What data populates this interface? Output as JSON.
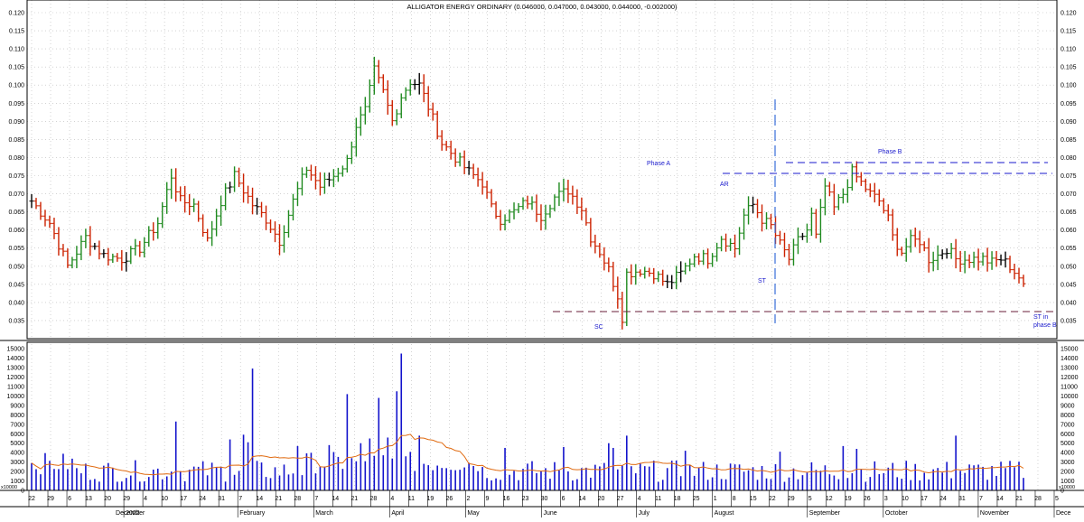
{
  "chart_data": {
    "type": "candlestick",
    "title": "ALLIGATOR ENERGY ORDINARY (0.046000, 0.047000, 0.043000, 0.044000, -0.002000)",
    "price_axis": {
      "ylim": [
        0.03,
        0.12
      ],
      "ticks": [
        "0.035",
        "0.040",
        "0.045",
        "0.050",
        "0.055",
        "0.060",
        "0.065",
        "0.070",
        "0.075",
        "0.080",
        "0.085",
        "0.090",
        "0.095",
        "0.100",
        "0.105",
        "0.110",
        "0.115",
        "0.120"
      ]
    },
    "volume_axis": {
      "ylim": [
        0,
        15500
      ],
      "ticks": [
        "0",
        "1000",
        "2000",
        "3000",
        "4000",
        "5000",
        "6000",
        "7000",
        "8000",
        "9000",
        "10000",
        "11000",
        "12000",
        "13000",
        "14000",
        "15000"
      ],
      "multiplier_label": "x10000"
    },
    "x_axis": {
      "day_labels": [
        "22",
        "29",
        "6",
        "13",
        "20",
        "29",
        "4",
        "10",
        "17",
        "24",
        "31",
        "7",
        "14",
        "21",
        "28",
        "7",
        "14",
        "21",
        "28",
        "4",
        "11",
        "19",
        "26",
        "2",
        "9",
        "16",
        "23",
        "30",
        "6",
        "14",
        "20",
        "27",
        "4",
        "11",
        "18",
        "25",
        "1",
        "8",
        "15",
        "22",
        "29",
        "5",
        "12",
        "19",
        "26",
        "3",
        "10",
        "17",
        "24",
        "31",
        "7",
        "14",
        "21",
        "28",
        "5"
      ],
      "month_labels": [
        "December",
        "2022",
        "February",
        "March",
        "April",
        "May",
        "June",
        "July",
        "August",
        "September",
        "October",
        "November",
        "Dece"
      ]
    },
    "price_anchors": [
      [
        0,
        0.068
      ],
      [
        4,
        0.062
      ],
      [
        8,
        0.05
      ],
      [
        12,
        0.058
      ],
      [
        16,
        0.053
      ],
      [
        20,
        0.052
      ],
      [
        24,
        0.055
      ],
      [
        28,
        0.062
      ],
      [
        31,
        0.075
      ],
      [
        33,
        0.068
      ],
      [
        36,
        0.067
      ],
      [
        39,
        0.057
      ],
      [
        42,
        0.068
      ],
      [
        45,
        0.075
      ],
      [
        49,
        0.067
      ],
      [
        52,
        0.063
      ],
      [
        55,
        0.057
      ],
      [
        58,
        0.068
      ],
      [
        61,
        0.077
      ],
      [
        64,
        0.072
      ],
      [
        67,
        0.075
      ],
      [
        70,
        0.079
      ],
      [
        72,
        0.089
      ],
      [
        74,
        0.093
      ],
      [
        76,
        0.104
      ],
      [
        78,
        0.098
      ],
      [
        80,
        0.09
      ],
      [
        82,
        0.097
      ],
      [
        84,
        0.101
      ],
      [
        86,
        0.1
      ],
      [
        88,
        0.094
      ],
      [
        91,
        0.084
      ],
      [
        94,
        0.08
      ],
      [
        97,
        0.076
      ],
      [
        100,
        0.073
      ],
      [
        102,
        0.066
      ],
      [
        104,
        0.063
      ],
      [
        107,
        0.065
      ],
      [
        110,
        0.068
      ],
      [
        113,
        0.064
      ],
      [
        116,
        0.069
      ],
      [
        119,
        0.071
      ],
      [
        122,
        0.066
      ],
      [
        124,
        0.058
      ],
      [
        126,
        0.054
      ],
      [
        128,
        0.049
      ],
      [
        130,
        0.042
      ],
      [
        131,
        0.036
      ],
      [
        132,
        0.048
      ],
      [
        135,
        0.049
      ],
      [
        138,
        0.048
      ],
      [
        141,
        0.045
      ],
      [
        144,
        0.048
      ],
      [
        147,
        0.053
      ],
      [
        150,
        0.052
      ],
      [
        153,
        0.058
      ],
      [
        156,
        0.055
      ],
      [
        158,
        0.064
      ],
      [
        160,
        0.067
      ],
      [
        162,
        0.063
      ],
      [
        164,
        0.061
      ],
      [
        166,
        0.056
      ],
      [
        168,
        0.052
      ],
      [
        170,
        0.057
      ],
      [
        172,
        0.06
      ],
      [
        173,
        0.064
      ],
      [
        174,
        0.058
      ],
      [
        176,
        0.072
      ],
      [
        178,
        0.066
      ],
      [
        180,
        0.07
      ],
      [
        182,
        0.076
      ],
      [
        184,
        0.073
      ],
      [
        186,
        0.07
      ],
      [
        188,
        0.068
      ],
      [
        190,
        0.063
      ],
      [
        191,
        0.058
      ],
      [
        193,
        0.054
      ],
      [
        195,
        0.057
      ],
      [
        197,
        0.057
      ],
      [
        199,
        0.052
      ],
      [
        201,
        0.053
      ],
      [
        203,
        0.055
      ],
      [
        205,
        0.052
      ],
      [
        207,
        0.052
      ],
      [
        209,
        0.052
      ],
      [
        211,
        0.052
      ],
      [
        213,
        0.051
      ],
      [
        215,
        0.052
      ],
      [
        217,
        0.05
      ],
      [
        219,
        0.047
      ],
      [
        220,
        0.044
      ]
    ],
    "annotations": {
      "phase_a": "Phase A",
      "phase_b": "Phase B",
      "ar": "AR",
      "st": "ST",
      "sc": "SC",
      "st_phase_b_1": "ST in",
      "st_phase_b_2": "phase B"
    },
    "colors": {
      "up": "#1f8a1f",
      "down": "#cc2200",
      "neutral": "#000000",
      "volume": "#1212cc",
      "volume_ma": "#e06a10",
      "annotation": "#1a1acc",
      "sc_line": "#6a1f3a",
      "grid": "#b8b8b8"
    },
    "grid": true
  }
}
